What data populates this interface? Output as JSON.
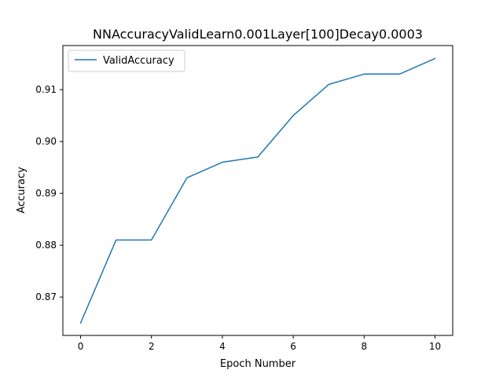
{
  "chart_data": {
    "type": "line",
    "title": "NNAccuracyValidLearn0.001Layer[100]Decay0.0003",
    "xlabel": "Epoch Number",
    "ylabel": "Accuracy",
    "x": [
      0,
      1,
      2,
      3,
      4,
      5,
      6,
      7,
      8,
      9,
      10
    ],
    "series": [
      {
        "name": "ValidAccuracy",
        "values": [
          0.865,
          0.881,
          0.881,
          0.893,
          0.896,
          0.897,
          0.905,
          0.911,
          0.913,
          0.913,
          0.916
        ],
        "color": "#1f77b4"
      }
    ],
    "xlim": [
      -0.5,
      10.5
    ],
    "ylim": [
      0.8626,
      0.9185
    ],
    "xticks": [
      0,
      2,
      4,
      6,
      8,
      10
    ],
    "xtick_labels": [
      "0",
      "2",
      "4",
      "6",
      "8",
      "10"
    ],
    "yticks": [
      0.87,
      0.88,
      0.89,
      0.9,
      0.91
    ],
    "ytick_labels": [
      "0.87",
      "0.88",
      "0.89",
      "0.90",
      "0.91"
    ],
    "grid": false,
    "legend_position": "upper-left"
  }
}
